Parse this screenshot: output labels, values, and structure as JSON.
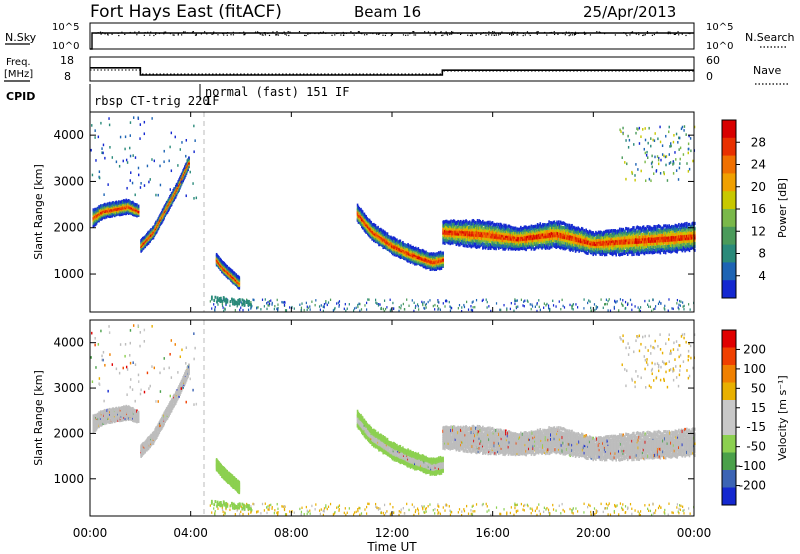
{
  "header": {
    "title": "Fort Hays East (fitACF)",
    "beam": "Beam 16",
    "date": "25/Apr/2013"
  },
  "nsky_panel": {
    "left_label": "N.Sky",
    "right_label": "N.Search",
    "left_ticks": [
      "10^5",
      "10^0"
    ],
    "right_ticks": [
      "10^5",
      "10^0"
    ]
  },
  "freq_panel": {
    "left_label_1": "Freq.",
    "left_label_2": "[MHz]",
    "right_label": "Nave",
    "left_ticks": [
      "18",
      "8"
    ],
    "right_ticks": [
      "60",
      "0"
    ]
  },
  "cpid": {
    "label": "CPID",
    "modes": [
      {
        "text": "rbsp CT-trig 220",
        "start_hour": 0.0
      },
      {
        "text": "normal (fast) 151 IF",
        "start_hour": 4.6
      }
    ],
    "mode2_prefix": "IF"
  },
  "power_panel": {
    "ylabel": "Slant Range [km]",
    "yticks": [
      "4000",
      "3000",
      "2000",
      "1000"
    ],
    "colorbar_label": "Power [dB]",
    "colorbar_ticks": [
      "28",
      "24",
      "20",
      "16",
      "12",
      "8",
      "4"
    ]
  },
  "velocity_panel": {
    "ylabel": "Slant Range [km]",
    "yticks": [
      "4000",
      "3000",
      "2000",
      "1000"
    ],
    "colorbar_label": "Velocity [m s⁻¹]",
    "colorbar_ticks": [
      "200",
      "100",
      "50",
      "15",
      "-15",
      "-50",
      "-100",
      "-200"
    ]
  },
  "xaxis": {
    "label": "Time UT",
    "ticks": [
      "00:00",
      "04:00",
      "08:00",
      "12:00",
      "16:00",
      "20:00",
      "00:00"
    ]
  },
  "colors": {
    "power_scale": [
      "#1428d0",
      "#1e64b4",
      "#2a8a7a",
      "#4a9a5a",
      "#7ab84a",
      "#c8c800",
      "#f0a000",
      "#f07000",
      "#e83000",
      "#d80000"
    ],
    "velocity_scale": [
      "#1428d0",
      "#3c64b4",
      "#4aa04a",
      "#8cd050",
      "#c8c8c8",
      "#c8c8c8",
      "#e8b000",
      "#f08000",
      "#f04000",
      "#e00000"
    ],
    "ground_scatter": "#bdbdbd"
  },
  "chart_data": {
    "type": "heatmap",
    "x_range_hours": [
      0,
      24
    ],
    "y_range_km": [
      180,
      4500
    ],
    "frequency_mhz": [
      {
        "start_hour": 0.0,
        "end_hour": 2.0,
        "value": 13.5
      },
      {
        "start_hour": 2.0,
        "end_hour": 14.0,
        "value": 10.5
      },
      {
        "start_hour": 14.0,
        "end_hour": 24.0,
        "value": 12.5
      }
    ],
    "power_features": [
      {
        "name": "scatter-early",
        "t": [
          0.1,
          0.5,
          1.0,
          1.5,
          1.9
        ],
        "range_km": [
          2200,
          2350,
          2400,
          2450,
          2350
        ],
        "width_km": [
          300,
          250,
          250,
          250,
          200
        ]
      },
      {
        "name": "scatter-rise",
        "t": [
          2.0,
          2.5,
          3.0,
          3.5,
          3.9
        ],
        "range_km": [
          1600,
          1900,
          2400,
          2900,
          3400
        ],
        "width_km": [
          200,
          200,
          200,
          200,
          200
        ]
      },
      {
        "name": "scatter-small",
        "t": [
          5.0,
          5.3,
          5.6,
          5.9
        ],
        "range_km": [
          1300,
          1100,
          950,
          800
        ],
        "width_km": [
          200,
          200,
          200,
          200
        ]
      },
      {
        "name": "scatter-mid",
        "t": [
          10.6,
          11.2,
          12.0,
          12.8,
          13.6,
          14.0
        ],
        "range_km": [
          2300,
          1900,
          1600,
          1400,
          1250,
          1300
        ],
        "width_km": [
          300,
          300,
          300,
          300,
          300,
          300
        ]
      },
      {
        "name": "scatter-late",
        "t": [
          14.0,
          15.5,
          17.0,
          18.5,
          20.0,
          21.5,
          23.0,
          24.0
        ],
        "range_km": [
          1900,
          1850,
          1750,
          1850,
          1650,
          1700,
          1750,
          1800
        ],
        "width_km": [
          400,
          500,
          400,
          500,
          400,
          500,
          500,
          500
        ]
      }
    ]
  }
}
